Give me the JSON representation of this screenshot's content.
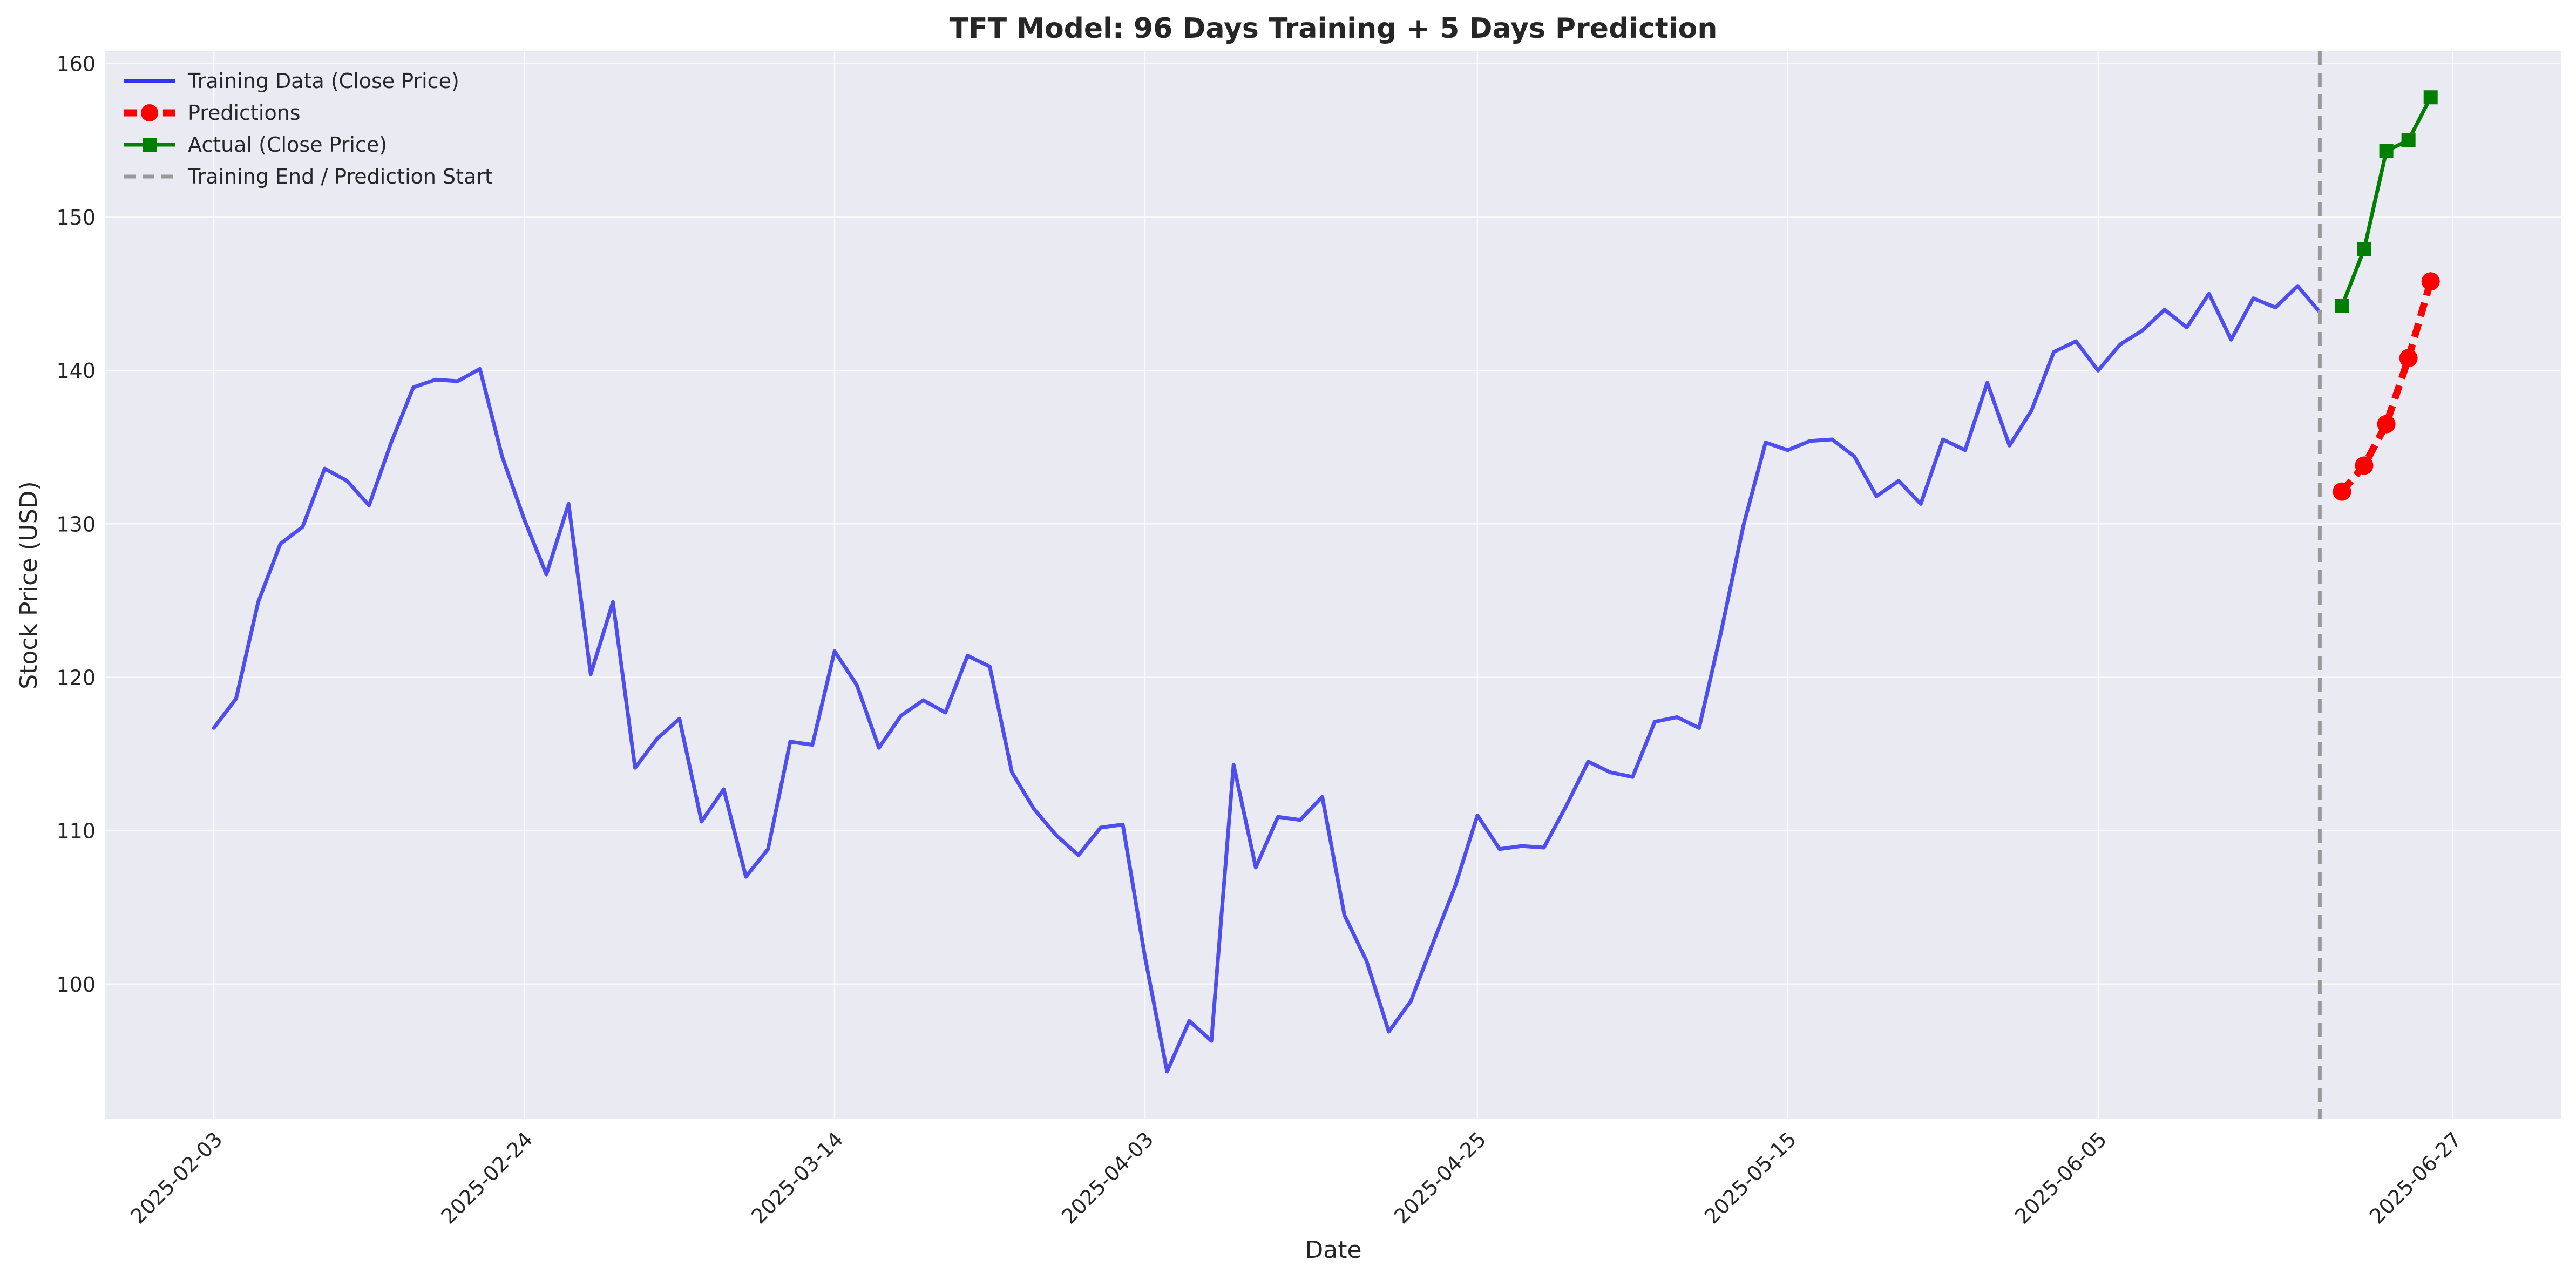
{
  "chart_data": {
    "type": "line",
    "title": "TFT Model: 96 Days Training + 5 Days Prediction",
    "xlabel": "Date",
    "ylabel": "Stock Price (USD)",
    "grid": true,
    "legend_position": "top-left",
    "y_ticks": [
      100,
      110,
      120,
      130,
      140,
      150,
      160
    ],
    "x_ticks": [
      "2025-02-03",
      "2025-02-24",
      "2025-03-14",
      "2025-04-03",
      "2025-04-25",
      "2025-05-15",
      "2025-06-05",
      "2025-06-27"
    ],
    "prediction_start": "2025-06-19",
    "series": [
      {
        "name": "Training Data (Close Price)",
        "color": "#3333ee",
        "style": "solid",
        "marker": "none",
        "points": [
          [
            "2025-02-03",
            116.7
          ],
          [
            "2025-02-04",
            118.6
          ],
          [
            "2025-02-05",
            124.9
          ],
          [
            "2025-02-06",
            128.7
          ],
          [
            "2025-02-07",
            129.8
          ],
          [
            "2025-02-10",
            133.6
          ],
          [
            "2025-02-11",
            132.8
          ],
          [
            "2025-02-12",
            131.2
          ],
          [
            "2025-02-13",
            135.3
          ],
          [
            "2025-02-14",
            138.9
          ],
          [
            "2025-02-18",
            139.4
          ],
          [
            "2025-02-19",
            139.3
          ],
          [
            "2025-02-20",
            140.1
          ],
          [
            "2025-02-21",
            134.4
          ],
          [
            "2025-02-24",
            130.3
          ],
          [
            "2025-02-25",
            126.7
          ],
          [
            "2025-02-26",
            131.3
          ],
          [
            "2025-02-27",
            120.2
          ],
          [
            "2025-02-28",
            124.9
          ],
          [
            "2025-03-03",
            114.1
          ],
          [
            "2025-03-04",
            116.0
          ],
          [
            "2025-03-05",
            117.3
          ],
          [
            "2025-03-06",
            110.6
          ],
          [
            "2025-03-07",
            112.7
          ],
          [
            "2025-03-10",
            107.0
          ],
          [
            "2025-03-11",
            108.8
          ],
          [
            "2025-03-12",
            115.8
          ],
          [
            "2025-03-13",
            115.6
          ],
          [
            "2025-03-14",
            121.7
          ],
          [
            "2025-03-17",
            119.5
          ],
          [
            "2025-03-18",
            115.4
          ],
          [
            "2025-03-19",
            117.5
          ],
          [
            "2025-03-20",
            118.5
          ],
          [
            "2025-03-21",
            117.7
          ],
          [
            "2025-03-24",
            121.4
          ],
          [
            "2025-03-25",
            120.7
          ],
          [
            "2025-03-26",
            113.8
          ],
          [
            "2025-03-27",
            111.4
          ],
          [
            "2025-03-28",
            109.7
          ],
          [
            "2025-03-31",
            108.4
          ],
          [
            "2025-04-01",
            110.2
          ],
          [
            "2025-04-02",
            110.4
          ],
          [
            "2025-04-03",
            101.8
          ],
          [
            "2025-04-04",
            94.3
          ],
          [
            "2025-04-07",
            97.6
          ],
          [
            "2025-04-08",
            96.3
          ],
          [
            "2025-04-09",
            114.3
          ],
          [
            "2025-04-10",
            107.6
          ],
          [
            "2025-04-11",
            110.9
          ],
          [
            "2025-04-14",
            110.7
          ],
          [
            "2025-04-15",
            112.2
          ],
          [
            "2025-04-16",
            104.5
          ],
          [
            "2025-04-17",
            101.5
          ],
          [
            "2025-04-21",
            96.9
          ],
          [
            "2025-04-22",
            98.9
          ],
          [
            "2025-04-23",
            102.7
          ],
          [
            "2025-04-24",
            106.4
          ],
          [
            "2025-04-25",
            111.0
          ],
          [
            "2025-04-28",
            108.8
          ],
          [
            "2025-04-29",
            109.0
          ],
          [
            "2025-04-30",
            108.9
          ],
          [
            "2025-05-01",
            111.6
          ],
          [
            "2025-05-02",
            114.5
          ],
          [
            "2025-05-05",
            113.8
          ],
          [
            "2025-05-06",
            113.5
          ],
          [
            "2025-05-07",
            117.1
          ],
          [
            "2025-05-08",
            117.4
          ],
          [
            "2025-05-09",
            116.7
          ],
          [
            "2025-05-12",
            123.0
          ],
          [
            "2025-05-13",
            129.9
          ],
          [
            "2025-05-14",
            135.3
          ],
          [
            "2025-05-15",
            134.8
          ],
          [
            "2025-05-16",
            135.4
          ],
          [
            "2025-05-19",
            135.5
          ],
          [
            "2025-05-20",
            134.4
          ],
          [
            "2025-05-21",
            131.8
          ],
          [
            "2025-05-22",
            132.8
          ],
          [
            "2025-05-23",
            131.3
          ],
          [
            "2025-05-27",
            135.5
          ],
          [
            "2025-05-28",
            134.8
          ],
          [
            "2025-05-29",
            139.2
          ],
          [
            "2025-05-30",
            135.1
          ],
          [
            "2025-06-02",
            137.4
          ],
          [
            "2025-06-03",
            141.2
          ],
          [
            "2025-06-04",
            141.9
          ],
          [
            "2025-06-05",
            139.99
          ],
          [
            "2025-06-06",
            141.7
          ],
          [
            "2025-06-09",
            142.6
          ],
          [
            "2025-06-10",
            143.96
          ],
          [
            "2025-06-11",
            142.8
          ],
          [
            "2025-06-12",
            145.0
          ],
          [
            "2025-06-13",
            142.0
          ],
          [
            "2025-06-16",
            144.7
          ],
          [
            "2025-06-17",
            144.1
          ],
          [
            "2025-06-18",
            145.5
          ],
          [
            "2025-06-19",
            143.8
          ]
        ]
      },
      {
        "name": "Predictions",
        "color": "#ff0000",
        "style": "dashed",
        "marker": "circle",
        "points": [
          [
            "2025-06-20",
            132.1
          ],
          [
            "2025-06-23",
            133.8
          ],
          [
            "2025-06-24",
            136.5
          ],
          [
            "2025-06-25",
            140.8
          ],
          [
            "2025-06-26",
            145.8
          ]
        ]
      },
      {
        "name": "Actual (Close Price)",
        "color": "#007f00",
        "style": "solid",
        "marker": "square",
        "points": [
          [
            "2025-06-20",
            144.2
          ],
          [
            "2025-06-23",
            147.9
          ],
          [
            "2025-06-24",
            154.3
          ],
          [
            "2025-06-25",
            155.0
          ],
          [
            "2025-06-26",
            157.8
          ]
        ]
      }
    ],
    "reference_lines": [
      {
        "name": "Training End / Prediction Start",
        "color": "#999999",
        "style": "dashed",
        "x": "2025-06-19"
      }
    ]
  }
}
